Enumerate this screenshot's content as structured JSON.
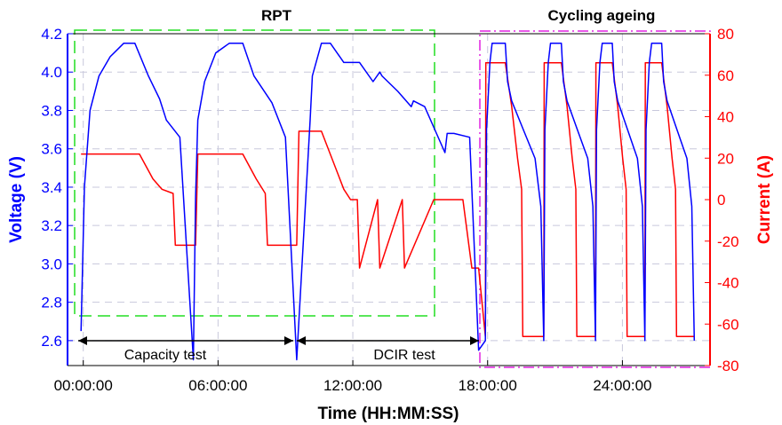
{
  "chart_data": {
    "type": "line",
    "xlabel": "Time (HH:MM:SS)",
    "ylabel_left": "Voltage (V)",
    "ylabel_right": "Current (A)",
    "x_unit": "hours",
    "xlim": [
      -0.7,
      27.9
    ],
    "ylim_left": [
      2.47,
      4.2
    ],
    "ylim_right": [
      -80,
      80
    ],
    "x_ticks": [
      {
        "value": 0,
        "label": "00:00:00"
      },
      {
        "value": 6,
        "label": "06:00:00"
      },
      {
        "value": 12,
        "label": "12:00:00"
      },
      {
        "value": 18,
        "label": "18:00:00"
      },
      {
        "value": 24,
        "label": "24:00:00"
      }
    ],
    "y_ticks_left": [
      "2.6",
      "2.8",
      "3.0",
      "3.2",
      "3.4",
      "3.6",
      "3.8",
      "4.0",
      "4.2"
    ],
    "y_ticks_right": [
      "-80",
      "-60",
      "-40",
      "-20",
      "0",
      "20",
      "40",
      "60",
      "80"
    ],
    "grid": true,
    "colors": {
      "voltage": "#0000ff",
      "current": "#ff0000",
      "rpt_box": "#22dd22",
      "cycling_box": "#e020e0",
      "arrows": "#000000"
    },
    "series": [
      {
        "name": "Voltage (V)",
        "axis": "left",
        "x": [
          -0.1,
          0.05,
          0.3,
          0.7,
          1.2,
          1.8,
          2.3,
          2.9,
          3.4,
          3.7,
          4.3,
          4.9,
          5.0,
          5.1,
          5.4,
          5.9,
          6.5,
          7.1,
          7.6,
          8.4,
          9.0,
          9.5,
          10.1,
          10.2,
          10.6,
          11.0,
          11.6,
          12.3,
          12.9,
          13.2,
          13.3,
          14.0,
          14.6,
          14.7,
          15.2,
          16.1,
          16.2,
          16.5,
          17.2,
          17.6
        ],
        "y": [
          2.65,
          3.4,
          3.8,
          3.98,
          4.08,
          4.15,
          4.15,
          3.98,
          3.86,
          3.75,
          3.66,
          2.5,
          3.35,
          3.75,
          3.95,
          4.1,
          4.15,
          4.15,
          3.98,
          3.84,
          3.66,
          2.5,
          3.75,
          3.98,
          4.15,
          4.15,
          4.05,
          4.05,
          3.95,
          4.0,
          3.98,
          3.9,
          3.82,
          3.85,
          3.82,
          3.58,
          3.68,
          3.68,
          3.66,
          2.55
        ]
      },
      {
        "name": "Current (A)",
        "axis": "right",
        "x": [
          -0.1,
          2.5,
          3.1,
          3.5,
          4.0,
          4.1,
          5.0,
          5.1,
          7.1,
          7.7,
          8.1,
          8.2,
          9.5,
          9.6,
          10.6,
          11.6,
          11.9,
          12.2,
          12.3,
          13.1,
          13.2,
          14.2,
          14.3,
          15.6,
          16.9,
          17.3,
          17.6
        ],
        "y": [
          22,
          22,
          10,
          5,
          3,
          -22,
          -22,
          22,
          22,
          10,
          3,
          -22,
          -22,
          33,
          33,
          5,
          0,
          0,
          -33,
          0,
          -33,
          0,
          -33,
          0,
          0,
          -33,
          -33
        ]
      }
    ],
    "cycling": {
      "cycles": [
        {
          "start": 17.9,
          "end": 20.5
        },
        {
          "start": 20.5,
          "end": 22.8
        },
        {
          "start": 22.8,
          "end": 25.0
        },
        {
          "start": 25.0,
          "end": 27.2
        }
      ],
      "voltage_max": 4.15,
      "voltage_min": 2.6,
      "current_charge": 66,
      "current_discharge": -66
    },
    "annotations": {
      "region_titles": [
        "RPT",
        "Cycling ageing"
      ],
      "phase_labels": [
        "Capacity test",
        "DCIR test"
      ]
    }
  }
}
